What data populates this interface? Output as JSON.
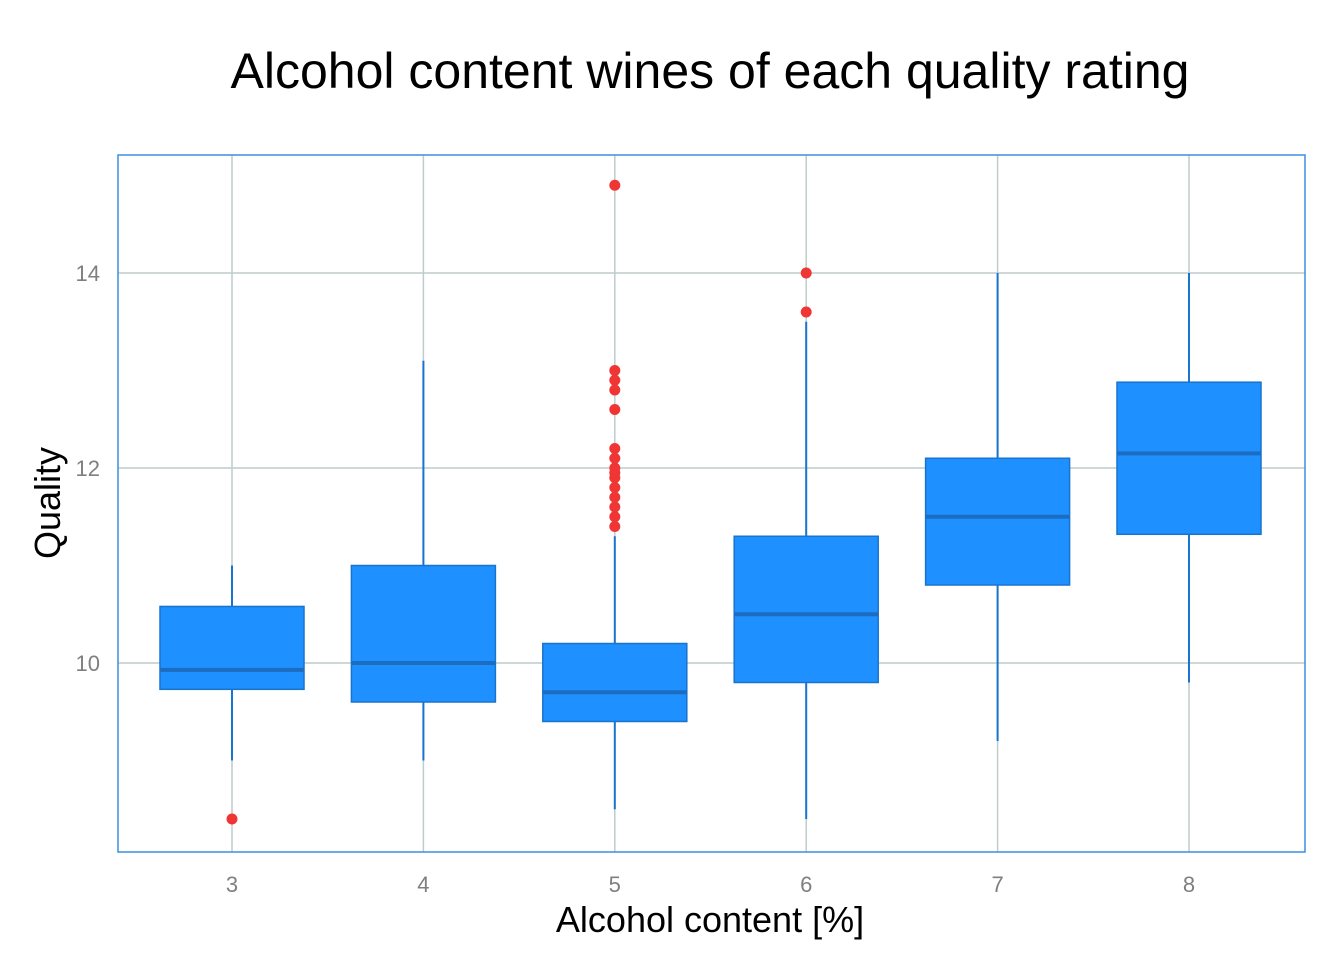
{
  "chart_data": {
    "type": "box",
    "title": "Alcohol content wines of each quality rating",
    "xlabel": "Alcohol content [%]",
    "ylabel": "Quality",
    "categories": [
      "3",
      "4",
      "5",
      "6",
      "7",
      "8"
    ],
    "y_ticks": [
      10,
      12,
      14
    ],
    "ylim": [
      8.1,
      15.2
    ],
    "grid": true,
    "legend": "none",
    "colors": {
      "box_fill": "#1e90ff",
      "box_stroke": "#1874cd",
      "median": "#1c6cc0",
      "outlier": "#f03535",
      "panel_border": "#3c8fe0",
      "grid": "#bfcccc"
    },
    "boxes": [
      {
        "category": "3",
        "lower_whisker": 9.0,
        "q1": 9.73,
        "median": 9.93,
        "q3": 10.58,
        "upper_whisker": 11.0,
        "outliers": [
          8.4
        ]
      },
      {
        "category": "4",
        "lower_whisker": 9.0,
        "q1": 9.6,
        "median": 10.0,
        "q3": 11.0,
        "upper_whisker": 13.1,
        "outliers": []
      },
      {
        "category": "5",
        "lower_whisker": 8.5,
        "q1": 9.4,
        "median": 9.7,
        "q3": 10.2,
        "upper_whisker": 11.3,
        "outliers": [
          11.4,
          11.5,
          11.6,
          11.7,
          11.8,
          11.9,
          11.95,
          12.0,
          12.1,
          12.2,
          12.6,
          12.8,
          12.9,
          13.0,
          14.9
        ]
      },
      {
        "category": "6",
        "lower_whisker": 8.4,
        "q1": 9.8,
        "median": 10.5,
        "q3": 11.3,
        "upper_whisker": 13.5,
        "outliers": [
          13.6,
          14.0
        ]
      },
      {
        "category": "7",
        "lower_whisker": 9.2,
        "q1": 10.8,
        "median": 11.5,
        "q3": 12.1,
        "upper_whisker": 14.0,
        "outliers": []
      },
      {
        "category": "8",
        "lower_whisker": 9.8,
        "q1": 11.32,
        "median": 12.15,
        "q3": 12.88,
        "upper_whisker": 14.0,
        "outliers": []
      }
    ]
  }
}
